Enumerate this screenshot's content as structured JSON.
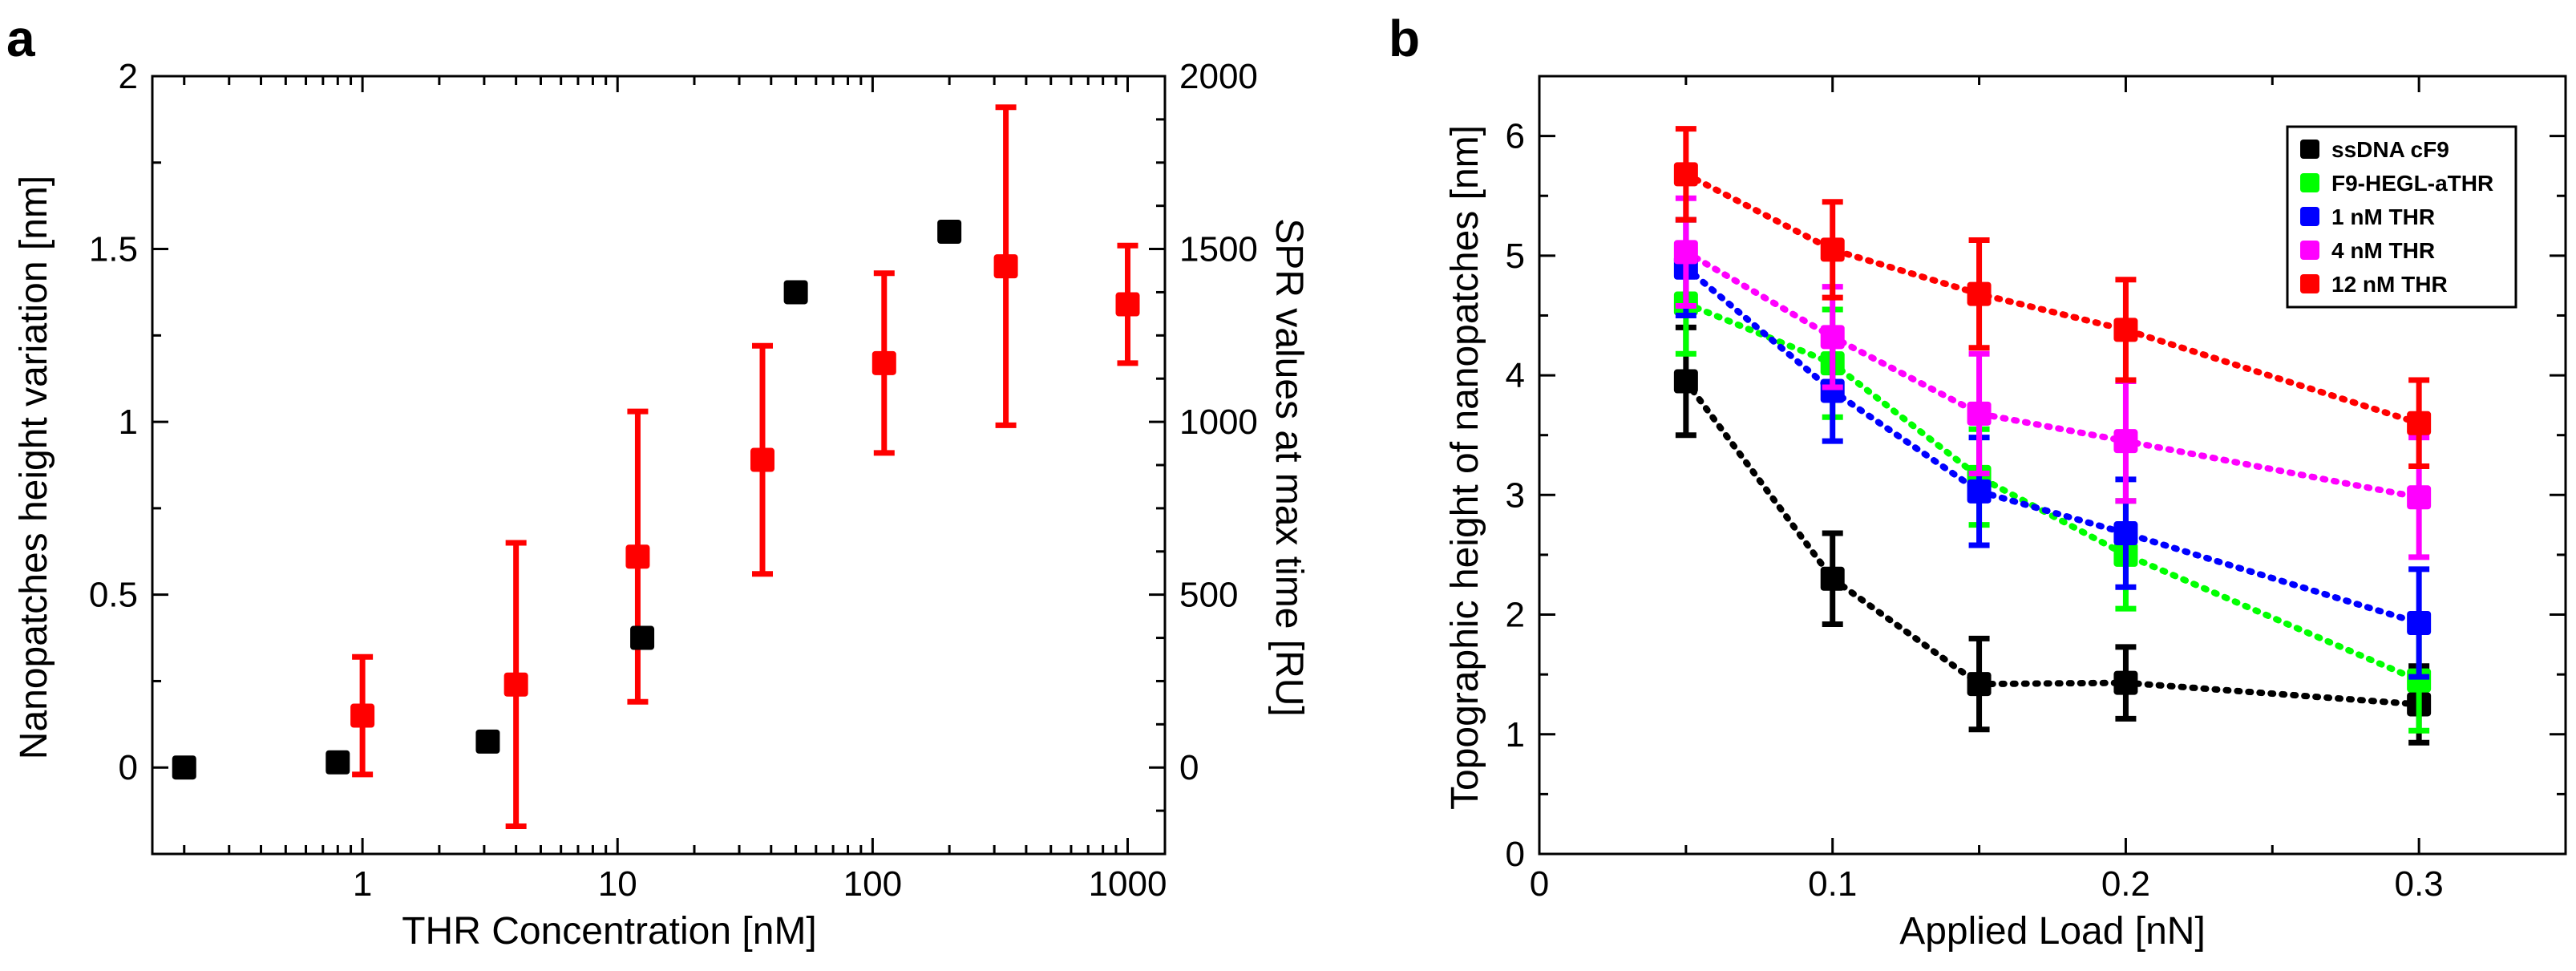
{
  "chart_data": [
    {
      "panel": "a",
      "type": "scatter",
      "title": "",
      "xlabel": "THR Concentration [nM]",
      "xscale": "log",
      "xlim": [
        0.15,
        1400
      ],
      "xticks": [
        1,
        10,
        100,
        1000
      ],
      "xtick_labels": [
        "1",
        "10",
        "100",
        "1000"
      ],
      "ylabel_left": "Nanopatches height variation [nm]",
      "ylabel_left_color": "#ff0000",
      "ylim_left": [
        -0.25,
        2
      ],
      "yticks_left": [
        0,
        0.5,
        1,
        1.5,
        2
      ],
      "ytick_labels_left": [
        "0",
        "0.5",
        "1",
        "1.5",
        "2"
      ],
      "ylabel_right": "SPR values at max time [RU]",
      "ylim_right": [
        -250,
        2000
      ],
      "yticks_right": [
        0,
        500,
        1000,
        1500,
        2000
      ],
      "ytick_labels_right": [
        "0",
        "500",
        "1000",
        "1500",
        "2000"
      ],
      "series": [
        {
          "name": "Nanopatches height variation",
          "color": "#ff0000",
          "axis": "left",
          "x": [
            1,
            4,
            12,
            37,
            111,
            333,
            1000
          ],
          "y": [
            0.15,
            0.24,
            0.61,
            0.89,
            1.17,
            1.45,
            1.34
          ],
          "yerr": [
            0.17,
            0.41,
            0.42,
            0.33,
            0.26,
            0.46,
            0.17
          ]
        },
        {
          "name": "SPR values at max time",
          "color": "#000000",
          "axis": "right",
          "x": [
            0.2,
            0.8,
            3.1,
            12.5,
            50,
            200
          ],
          "y": [
            0,
            15,
            75,
            375,
            1375,
            1550
          ]
        }
      ]
    },
    {
      "panel": "b",
      "type": "line",
      "title": "",
      "xlabel": "Applied Load [nN]",
      "xlim": [
        0,
        0.35
      ],
      "xticks": [
        0,
        0.1,
        0.2,
        0.3
      ],
      "xtick_labels": [
        "0",
        "0.1",
        "0.2",
        "0.3"
      ],
      "ylabel": "Topographic height of nanopatches  [nm]",
      "ylim": [
        0,
        6.5
      ],
      "yticks": [
        0,
        1,
        2,
        3,
        4,
        5,
        6
      ],
      "ytick_labels": [
        "0",
        "1",
        "2",
        "3",
        "4",
        "5",
        "6"
      ],
      "legend_position": "top-right",
      "x": [
        0.05,
        0.1,
        0.15,
        0.2,
        0.3
      ],
      "series": [
        {
          "name": "ssDNA cF9",
          "color": "#000000",
          "values": [
            3.95,
            2.3,
            1.42,
            1.43,
            1.25
          ],
          "yerr": [
            0.45,
            0.38,
            0.38,
            0.3,
            0.32
          ]
        },
        {
          "name": "F9-HEGL-aTHR",
          "color": "#00ff00",
          "values": [
            4.6,
            4.1,
            3.15,
            2.5,
            1.45
          ],
          "yerr": [
            0.42,
            0.45,
            0.4,
            0.45,
            0.42
          ]
        },
        {
          "name": "1 nM THR",
          "color": "#0000ff",
          "values": [
            4.9,
            3.87,
            3.03,
            2.68,
            1.93
          ],
          "yerr": [
            0.4,
            0.42,
            0.45,
            0.45,
            0.45
          ]
        },
        {
          "name": "4 nM THR",
          "color": "#ff00ff",
          "values": [
            5.03,
            4.32,
            3.68,
            3.45,
            2.98
          ],
          "yerr": [
            0.45,
            0.42,
            0.5,
            0.5,
            0.5
          ]
        },
        {
          "name": "12 nM THR",
          "color": "#ff0000",
          "values": [
            5.68,
            5.05,
            4.68,
            4.38,
            3.6
          ],
          "yerr": [
            0.38,
            0.4,
            0.45,
            0.42,
            0.36
          ]
        }
      ]
    }
  ]
}
